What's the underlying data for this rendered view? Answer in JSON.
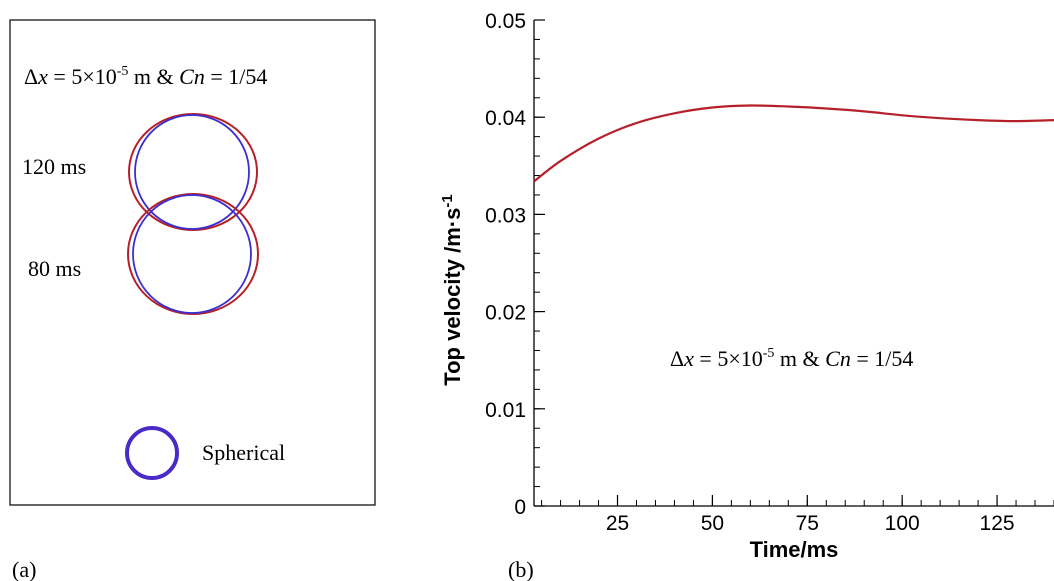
{
  "panel_a": {
    "label": "(a)",
    "annotation": {
      "dx_symbol": "Δ",
      "dx_var": "x",
      "dx_eq": " = 5×10",
      "dx_exp": "-5",
      "dx_unit": " m & ",
      "cn_var": "Cn",
      "cn_eq": " = 1/54"
    },
    "time_labels": [
      "120 ms",
      "80 ms"
    ],
    "legend_label": "Spherical",
    "colors": {
      "simulated": "#b5202a",
      "spherical": "#3a2fd0",
      "legend": "#4a2bc8"
    }
  },
  "panel_b": {
    "label": "(b)",
    "annotation": {
      "dx_symbol": "Δ",
      "dx_var": "x",
      "dx_eq": " = 5×10",
      "dx_exp": "-5",
      "dx_unit": " m & ",
      "cn_var": "Cn",
      "cn_eq": " = 1/54"
    }
  },
  "chart_data": {
    "type": "line",
    "title": "",
    "xlabel": "Time/ms",
    "ylabel": "Top velocity /m·s",
    "ylabel_exp": "-1",
    "xlim": [
      3,
      140
    ],
    "ylim": [
      0,
      0.05
    ],
    "x_ticks": [
      25,
      50,
      75,
      100,
      125
    ],
    "x_tick_labels": [
      "25",
      "50",
      "75",
      "100",
      "125"
    ],
    "y_ticks": [
      0,
      0.01,
      0.02,
      0.03,
      0.04,
      0.05
    ],
    "y_tick_labels": [
      "0",
      "0.01",
      "0.02",
      "0.03",
      "0.04",
      "0.05"
    ],
    "grid": false,
    "line_color": "#b5202a",
    "series": [
      {
        "x": [
          3,
          10,
          20,
          30,
          40,
          50,
          60,
          70,
          80,
          90,
          100,
          110,
          120,
          130,
          140
        ],
        "values": [
          0.0334,
          0.0355,
          0.0378,
          0.0394,
          0.0404,
          0.041,
          0.0412,
          0.0411,
          0.0409,
          0.0406,
          0.0402,
          0.0399,
          0.0397,
          0.0396,
          0.0397
        ]
      }
    ]
  }
}
